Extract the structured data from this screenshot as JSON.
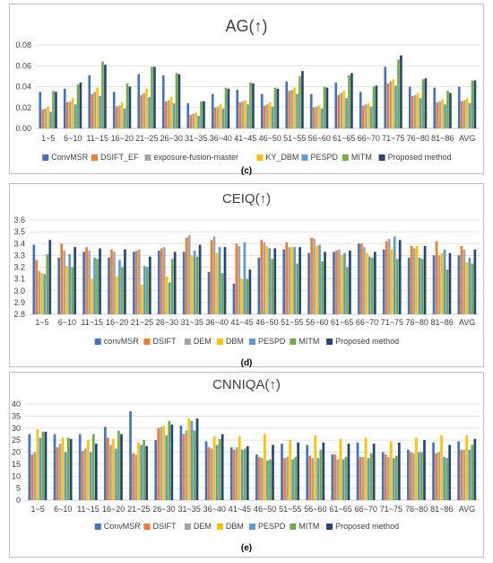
{
  "colors": {
    "series": [
      "#4472C4",
      "#ED7D31",
      "#A5A5A5",
      "#FFC000",
      "#5B9BD5",
      "#70AD47",
      "#264478"
    ],
    "grid": "#d9d9d9",
    "frame": "#bfbfbf",
    "text": "#404040"
  },
  "chart_data": [
    {
      "type": "bar",
      "title": "AG(↑)",
      "caption": "(c)",
      "xlabel": "",
      "ylabel": "",
      "ylim": [
        0,
        0.08
      ],
      "ytick_step": 0.02,
      "ytick_decimals": 2,
      "grid": true,
      "legend_position": "bottom",
      "categories": [
        "1~5",
        "6~10",
        "11~15",
        "16~20",
        "21~25",
        "26~30",
        "31~35",
        "36~40",
        "41~45",
        "46~50",
        "51~55",
        "56~60",
        "61~65",
        "66~70",
        "71~75",
        "76~80",
        "81~86",
        "AVG"
      ],
      "series": [
        {
          "name": "ConvMSR",
          "values": [
            0.035,
            0.038,
            0.051,
            0.035,
            0.052,
            0.051,
            0.024,
            0.033,
            0.037,
            0.033,
            0.045,
            0.033,
            0.044,
            0.035,
            0.059,
            0.04,
            0.039,
            0.04
          ]
        },
        {
          "name": "DSIFT_EF",
          "values": [
            0.018,
            0.025,
            0.033,
            0.021,
            0.032,
            0.026,
            0.013,
            0.02,
            0.025,
            0.022,
            0.036,
            0.02,
            0.032,
            0.022,
            0.043,
            0.031,
            0.025,
            0.026
          ]
        },
        {
          "name": "exposure-fusion-master",
          "values": [
            0.019,
            0.026,
            0.035,
            0.022,
            0.034,
            0.027,
            0.014,
            0.021,
            0.026,
            0.023,
            0.037,
            0.021,
            0.034,
            0.023,
            0.045,
            0.032,
            0.026,
            0.027
          ]
        },
        {
          "name": "KY_DBM",
          "values": [
            0.021,
            0.029,
            0.039,
            0.025,
            0.038,
            0.03,
            0.015,
            0.023,
            0.027,
            0.025,
            0.039,
            0.022,
            0.036,
            0.024,
            0.047,
            0.034,
            0.028,
            0.029
          ]
        },
        {
          "name": "PESPD",
          "values": [
            0.016,
            0.023,
            0.031,
            0.019,
            0.03,
            0.024,
            0.012,
            0.019,
            0.023,
            0.021,
            0.033,
            0.019,
            0.029,
            0.021,
            0.041,
            0.029,
            0.023,
            0.024
          ]
        },
        {
          "name": "MITM",
          "values": [
            0.036,
            0.042,
            0.064,
            0.043,
            0.059,
            0.053,
            0.026,
            0.039,
            0.044,
            0.039,
            0.05,
            0.04,
            0.051,
            0.04,
            0.066,
            0.047,
            0.036,
            0.046
          ]
        },
        {
          "name": "Proposed method",
          "values": [
            0.035,
            0.044,
            0.061,
            0.04,
            0.059,
            0.052,
            0.026,
            0.038,
            0.043,
            0.038,
            0.055,
            0.039,
            0.053,
            0.041,
            0.07,
            0.048,
            0.034,
            0.046
          ]
        }
      ]
    },
    {
      "type": "bar",
      "title": "CEIQ(↑)",
      "caption": "(d)",
      "xlabel": "",
      "ylabel": "",
      "ylim": [
        2.8,
        3.6
      ],
      "ytick_step": 0.1,
      "ytick_decimals": 1,
      "grid": true,
      "legend_position": "bottom",
      "categories": [
        "1~5",
        "6~10",
        "11~15",
        "16~20",
        "21~25",
        "26~30",
        "31~35",
        "36~40",
        "41~45",
        "46~50",
        "51~55",
        "56~60",
        "61~65",
        "66~70",
        "71~75",
        "76~80",
        "81~86",
        "AVG"
      ],
      "series": [
        {
          "name": "convMSR",
          "values": [
            3.39,
            3.28,
            3.33,
            3.28,
            3.33,
            3.34,
            3.33,
            3.16,
            3.06,
            3.28,
            3.35,
            3.32,
            3.33,
            3.4,
            3.35,
            3.28,
            3.3,
            3.3
          ]
        },
        {
          "name": "DSIFT",
          "values": [
            3.26,
            3.4,
            3.37,
            3.35,
            3.34,
            3.36,
            3.45,
            3.43,
            3.4,
            3.43,
            3.41,
            3.45,
            3.34,
            3.4,
            3.42,
            3.38,
            3.42,
            3.38
          ]
        },
        {
          "name": "DEM",
          "values": [
            3.17,
            3.34,
            3.34,
            3.33,
            3.35,
            3.37,
            3.47,
            3.46,
            3.38,
            3.41,
            3.37,
            3.44,
            3.35,
            3.37,
            3.44,
            3.36,
            3.3,
            3.35
          ]
        },
        {
          "name": "DBM",
          "values": [
            3.15,
            3.21,
            3.1,
            3.12,
            3.05,
            3.12,
            3.3,
            3.32,
            3.1,
            3.38,
            3.37,
            3.38,
            3.3,
            3.32,
            3.35,
            3.38,
            3.32,
            3.24
          ]
        },
        {
          "name": "PESPD",
          "values": [
            3.14,
            3.31,
            3.28,
            3.26,
            3.21,
            3.07,
            3.34,
            3.37,
            3.41,
            3.36,
            3.37,
            3.39,
            3.32,
            3.29,
            3.46,
            3.28,
            3.35,
            3.28
          ]
        },
        {
          "name": "MITM",
          "values": [
            3.31,
            3.2,
            3.27,
            3.2,
            3.2,
            3.27,
            3.29,
            3.15,
            3.1,
            3.27,
            3.23,
            3.25,
            3.2,
            3.28,
            3.27,
            3.27,
            3.18,
            3.23
          ]
        },
        {
          "name": "Proposed method",
          "values": [
            3.43,
            3.37,
            3.36,
            3.35,
            3.29,
            3.33,
            3.39,
            3.37,
            3.18,
            3.36,
            3.37,
            3.33,
            3.34,
            3.33,
            3.43,
            3.38,
            3.32,
            3.35
          ]
        }
      ]
    },
    {
      "type": "bar",
      "title": "CNNIQA(↑)",
      "caption": "(e)",
      "xlabel": "",
      "ylabel": "",
      "ylim": [
        0,
        40
      ],
      "ytick_step": 5,
      "ytick_decimals": 0,
      "grid": true,
      "legend_position": "bottom",
      "categories": [
        "1~5",
        "6~10",
        "11~15",
        "16~20",
        "21~25",
        "26~30",
        "31~35",
        "36~40",
        "41~45",
        "46~50",
        "51~55",
        "56~60",
        "61~65",
        "66~70",
        "71~75",
        "76~80",
        "81~86",
        "AVG"
      ],
      "series": [
        {
          "name": "ConvMSR",
          "values": [
            27.5,
            27.5,
            27.5,
            30.5,
            37.0,
            25.0,
            31.0,
            24.5,
            22.0,
            19.0,
            23.5,
            23.0,
            19.0,
            24.0,
            20.0,
            21.0,
            24.0,
            24.5
          ]
        },
        {
          "name": "DSIFT",
          "values": [
            19.0,
            22.0,
            20.5,
            26.0,
            19.5,
            30.0,
            27.5,
            22.0,
            21.0,
            18.0,
            17.5,
            18.5,
            19.0,
            18.0,
            19.0,
            20.0,
            19.5,
            21.0
          ]
        },
        {
          "name": "DEM",
          "values": [
            20.0,
            23.5,
            21.5,
            23.0,
            19.0,
            30.5,
            29.0,
            21.5,
            22.0,
            17.5,
            18.0,
            17.5,
            17.0,
            18.0,
            18.0,
            19.5,
            20.0,
            21.0
          ]
        },
        {
          "name": "DBM",
          "values": [
            29.5,
            26.0,
            25.0,
            25.5,
            24.0,
            31.0,
            34.0,
            26.5,
            26.5,
            27.5,
            25.0,
            27.0,
            25.5,
            26.0,
            24.5,
            26.0,
            27.0,
            27.0
          ]
        },
        {
          "name": "PESPD",
          "values": [
            26.0,
            20.0,
            20.0,
            21.5,
            23.0,
            27.0,
            33.0,
            23.0,
            21.0,
            16.5,
            17.0,
            17.5,
            17.0,
            17.5,
            17.5,
            20.0,
            18.0,
            21.0
          ]
        },
        {
          "name": "MITM",
          "values": [
            28.5,
            26.0,
            27.5,
            29.0,
            25.0,
            33.0,
            29.0,
            25.5,
            21.5,
            17.0,
            18.0,
            21.0,
            18.0,
            19.5,
            18.5,
            20.0,
            17.5,
            23.0
          ]
        },
        {
          "name": "Proposed method",
          "values": [
            28.5,
            25.5,
            23.5,
            27.5,
            22.5,
            31.5,
            34.0,
            27.5,
            22.5,
            23.0,
            24.0,
            24.0,
            23.5,
            23.5,
            24.0,
            25.0,
            23.0,
            25.5
          ]
        }
      ]
    }
  ]
}
